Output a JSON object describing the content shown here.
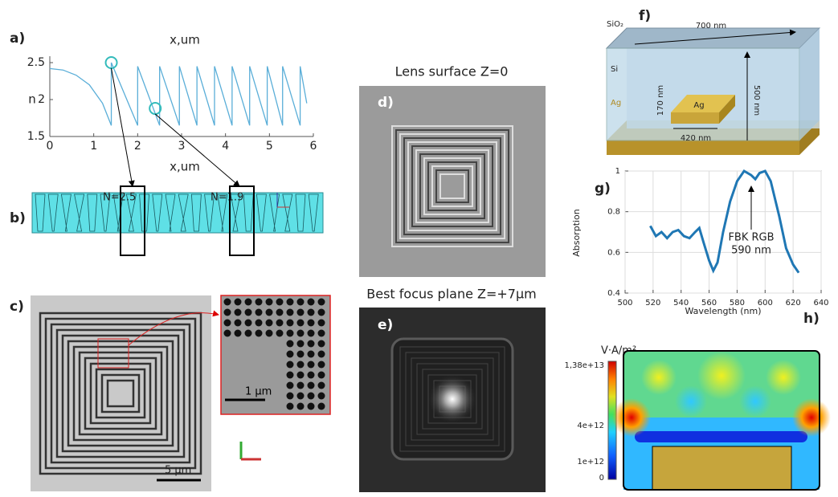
{
  "chart_data": [
    {
      "type": "line",
      "panel_label": "a)",
      "x_label_top": "x,um",
      "x_label": "x,um",
      "y_label": "n",
      "x": [
        0,
        0.3,
        0.6,
        0.9,
        1.2,
        1.4,
        1.4,
        2.0,
        2.0,
        2.5,
        2.5,
        2.95,
        2.95,
        3.35,
        3.35,
        3.75,
        3.75,
        4.15,
        4.15,
        4.55,
        4.55,
        4.95,
        4.95,
        5.3,
        5.3,
        5.7,
        5.7,
        5.85
      ],
      "series": [
        {
          "color": "#5aaed8",
          "values": [
            2.42,
            2.4,
            2.33,
            2.2,
            1.95,
            1.65,
            2.5,
            1.65,
            2.45,
            1.65,
            2.45,
            1.65,
            2.45,
            1.65,
            2.45,
            1.65,
            2.45,
            1.65,
            2.45,
            1.65,
            2.45,
            1.65,
            2.45,
            1.65,
            2.45,
            1.65,
            2.45,
            1.95
          ]
        }
      ],
      "xlim": [
        0,
        6
      ],
      "xticks": [
        0,
        1,
        2,
        3,
        4,
        5,
        6
      ],
      "ylim": [
        1.5,
        2.5
      ],
      "yticks": [
        1.5,
        2,
        2.5
      ],
      "grid": false
    },
    {
      "type": "line",
      "panel_label": "g)",
      "x_label": "Wavelength (nm)",
      "y_label": "Absorption",
      "annotation": [
        "FBK RGB",
        "590 nm"
      ],
      "x": [
        518,
        522,
        526,
        530,
        534,
        538,
        542,
        546,
        550,
        553,
        556,
        560,
        563,
        566,
        570,
        575,
        580,
        585,
        590,
        593,
        596,
        600,
        604,
        610,
        615,
        620,
        624
      ],
      "series": [
        {
          "color": "#1f77b4",
          "values": [
            0.73,
            0.68,
            0.7,
            0.67,
            0.7,
            0.71,
            0.68,
            0.67,
            0.7,
            0.72,
            0.65,
            0.56,
            0.51,
            0.55,
            0.7,
            0.85,
            0.95,
            1.0,
            0.98,
            0.96,
            0.99,
            1.0,
            0.95,
            0.78,
            0.62,
            0.54,
            0.5
          ]
        }
      ],
      "xlim": [
        500,
        640
      ],
      "xticks": [
        500,
        520,
        540,
        560,
        580,
        600,
        620,
        640
      ],
      "ylim": [
        0.4,
        1
      ],
      "yticks": [
        0.4,
        0.6,
        0.8,
        1
      ],
      "grid": true
    }
  ],
  "panels": {
    "b": {
      "label": "b)",
      "markers": [
        "N=2.5",
        "N=1.9"
      ]
    },
    "c": {
      "label": "c)",
      "scale_main": "5 μm",
      "scale_inset": "1 μm"
    },
    "d": {
      "label": "d)",
      "title": "Lens surface Z=0"
    },
    "e": {
      "label": "e)",
      "title": "Best focus plane Z=+7μm"
    },
    "f": {
      "label": "f)",
      "top_layer": "SiO₂",
      "width": "700 nm",
      "middle_layer": "Si",
      "height": "500 nm",
      "bottom_layer": "Ag",
      "block": "Ag",
      "block_height": "170 nm",
      "block_width": "420 nm"
    },
    "h": {
      "label": "h)",
      "unit": "V·A/m²",
      "scale_labels": [
        "1,38e+13",
        "4e+12",
        "1e+12",
        "0"
      ]
    }
  }
}
